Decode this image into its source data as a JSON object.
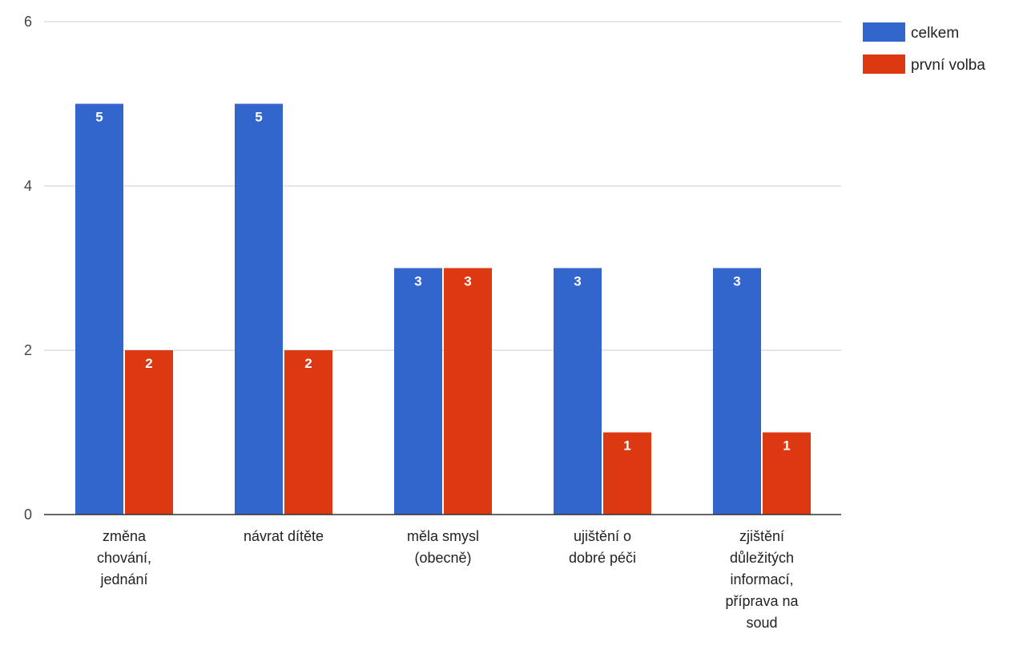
{
  "chart_data": {
    "type": "bar",
    "categories": [
      [
        "změna",
        "chování,",
        "jednání"
      ],
      [
        "návrat dítěte"
      ],
      [
        "měla smysl",
        "(obecně)"
      ],
      [
        "ujištění o",
        "dobré péči"
      ],
      [
        "zjištění",
        "důležitých",
        "informací,",
        "příprava na",
        "soud"
      ]
    ],
    "series": [
      {
        "name": "celkem",
        "color": "#3366cc",
        "values": [
          5,
          5,
          3,
          3,
          3
        ]
      },
      {
        "name": "první volba",
        "color": "#dc3912",
        "values": [
          2,
          2,
          3,
          1,
          1
        ]
      }
    ],
    "yticks": [
      0,
      2,
      4,
      6
    ],
    "ylim": [
      0,
      6
    ],
    "grid": true,
    "legend_position": "top-right",
    "title": "",
    "xlabel": "",
    "ylabel": ""
  }
}
